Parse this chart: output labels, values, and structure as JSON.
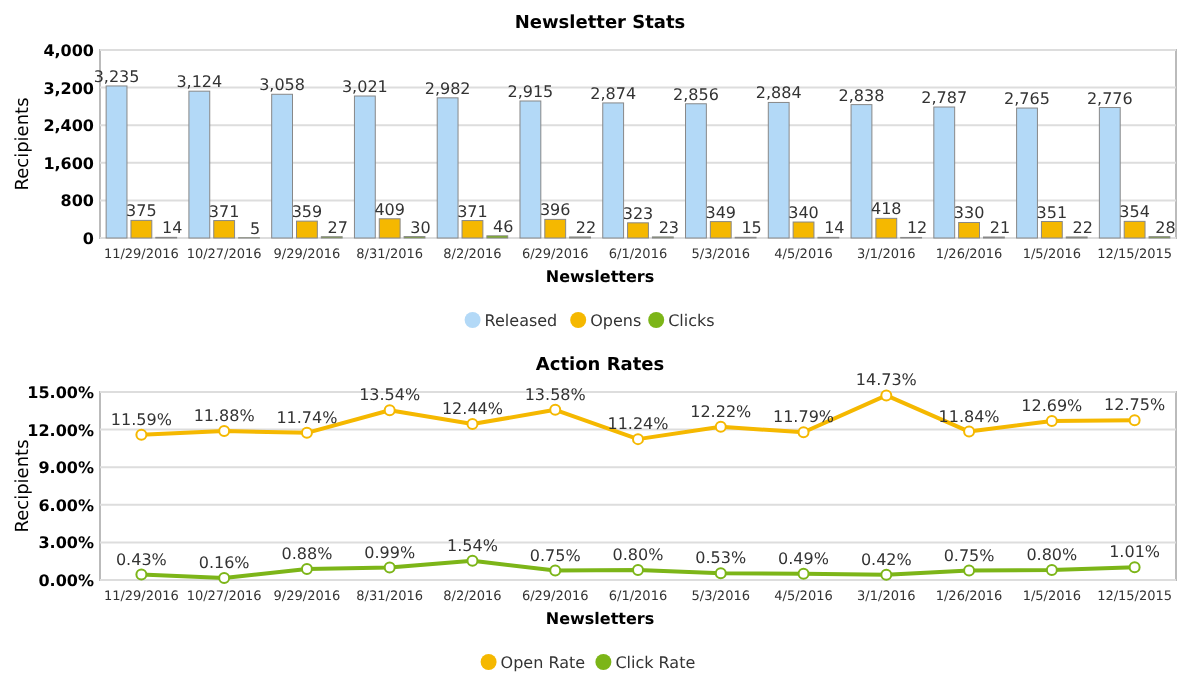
{
  "chart_data": [
    {
      "type": "bar",
      "title": "Newsletter Stats",
      "xlabel": "Newsletters",
      "ylabel": "Recipients",
      "categories": [
        "11/29/2016",
        "10/27/2016",
        "9/29/2016",
        "8/31/2016",
        "8/2/2016",
        "6/29/2016",
        "6/1/2016",
        "5/3/2016",
        "4/5/2016",
        "3/1/2016",
        "1/26/2016",
        "1/5/2016",
        "12/15/2015"
      ],
      "series": [
        {
          "name": "Released",
          "color": "#b3d9f7",
          "values": [
            3235,
            3124,
            3058,
            3021,
            2982,
            2915,
            2874,
            2856,
            2884,
            2838,
            2787,
            2765,
            2776
          ],
          "value_labels": [
            "3,235",
            "3,124",
            "3,058",
            "3,021",
            "2,982",
            "2,915",
            "2,874",
            "2,856",
            "2,884",
            "2,838",
            "2,787",
            "2,765",
            "2,776"
          ]
        },
        {
          "name": "Opens",
          "color": "#f5b800",
          "values": [
            375,
            371,
            359,
            409,
            371,
            396,
            323,
            349,
            340,
            418,
            330,
            351,
            354
          ],
          "value_labels": [
            "375",
            "371",
            "359",
            "409",
            "371",
            "396",
            "323",
            "349",
            "340",
            "418",
            "330",
            "351",
            "354"
          ]
        },
        {
          "name": "Clicks",
          "color": "#7cb518",
          "values": [
            14,
            5,
            27,
            30,
            46,
            22,
            23,
            15,
            14,
            12,
            21,
            22,
            28
          ],
          "value_labels": [
            "14",
            "5",
            "27",
            "30",
            "46",
            "22",
            "23",
            "15",
            "14",
            "12",
            "21",
            "22",
            "28"
          ]
        }
      ],
      "ylim": [
        0,
        4000
      ],
      "yticks": [
        0,
        {
          "value": 800,
          "label": "800"
        },
        {
          "value": 1600,
          "label": "1,600"
        },
        {
          "value": 2400,
          "label": "2,400"
        },
        {
          "value": 3200,
          "label": "3,200"
        },
        {
          "value": 4000,
          "label": "4,000"
        }
      ],
      "grid": "y",
      "legend": "bottom"
    },
    {
      "type": "line",
      "title": "Action Rates",
      "xlabel": "Newsletters",
      "ylabel": "Recipients",
      "categories": [
        "11/29/2016",
        "10/27/2016",
        "9/29/2016",
        "8/31/2016",
        "8/2/2016",
        "6/29/2016",
        "6/1/2016",
        "5/3/2016",
        "4/5/2016",
        "3/1/2016",
        "1/26/2016",
        "1/5/2016",
        "12/15/2015"
      ],
      "series": [
        {
          "name": "Open Rate",
          "color": "#f5b800",
          "values": [
            11.59,
            11.88,
            11.74,
            13.54,
            12.44,
            13.58,
            11.24,
            12.22,
            11.79,
            14.73,
            11.84,
            12.69,
            12.75
          ],
          "value_labels": [
            "11.59%",
            "11.88%",
            "11.74%",
            "13.54%",
            "12.44%",
            "13.58%",
            "11.24%",
            "12.22%",
            "11.79%",
            "14.73%",
            "11.84%",
            "12.69%",
            "12.75%"
          ]
        },
        {
          "name": "Click Rate",
          "color": "#7cb518",
          "values": [
            0.43,
            0.16,
            0.88,
            0.99,
            1.54,
            0.75,
            0.8,
            0.53,
            0.49,
            0.42,
            0.75,
            0.8,
            1.01
          ],
          "value_labels": [
            "0.43%",
            "0.16%",
            "0.88%",
            "0.99%",
            "1.54%",
            "0.75%",
            "0.80%",
            "0.53%",
            "0.49%",
            "0.42%",
            "0.75%",
            "0.80%",
            "1.01%"
          ]
        }
      ],
      "ylim": [
        0,
        15
      ],
      "yticks": [
        {
          "value": 0,
          "label": "0.00%"
        },
        {
          "value": 3,
          "label": "3.00%"
        },
        {
          "value": 6,
          "label": "6.00%"
        },
        {
          "value": 9,
          "label": "9.00%"
        },
        {
          "value": 12,
          "label": "12.00%"
        },
        {
          "value": 15,
          "label": "15.00%"
        }
      ],
      "grid": "y",
      "legend": "bottom",
      "marker": "circle"
    }
  ]
}
